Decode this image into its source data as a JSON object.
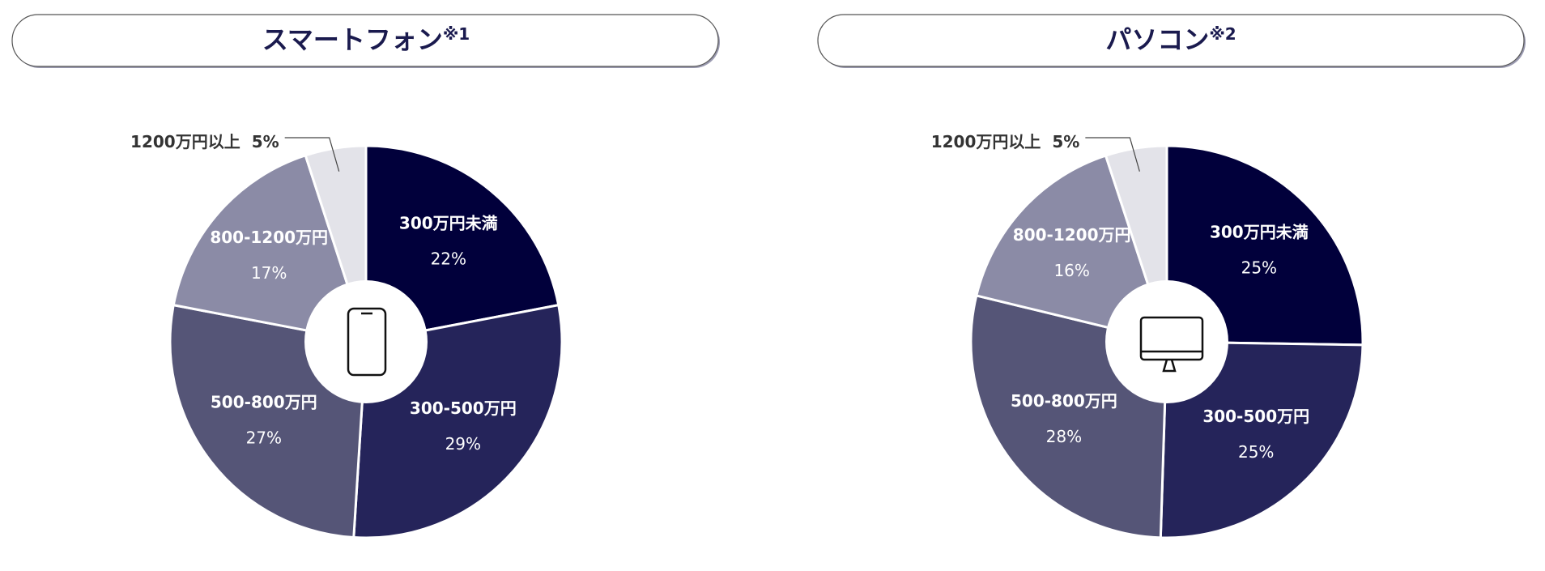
{
  "chart_data": [
    {
      "type": "pie",
      "title": "スマートフォン",
      "title_note": "※1",
      "categories": [
        "300万円未満",
        "300-500万円",
        "500-800万円",
        "800-1200万円",
        "1200万円以上"
      ],
      "values": [
        22,
        29,
        27,
        17,
        5
      ],
      "value_labels": [
        "22%",
        "29%",
        "27%",
        "17%",
        "5%"
      ],
      "colors": [
        "#01003b",
        "#25245a",
        "#555577",
        "#8b8ba6",
        "#e3e3e9"
      ]
    },
    {
      "type": "pie",
      "title": "パソコン",
      "title_note": "※2",
      "categories": [
        "300万円未満",
        "300-500万円",
        "500-800万円",
        "800-1200万円",
        "1200万円以上"
      ],
      "values": [
        25,
        25,
        28,
        16,
        5
      ],
      "value_labels": [
        "25%",
        "25%",
        "28%",
        "16%",
        "5%"
      ],
      "colors": [
        "#01003b",
        "#25245a",
        "#555577",
        "#8b8ba6",
        "#e3e3e9"
      ]
    }
  ]
}
